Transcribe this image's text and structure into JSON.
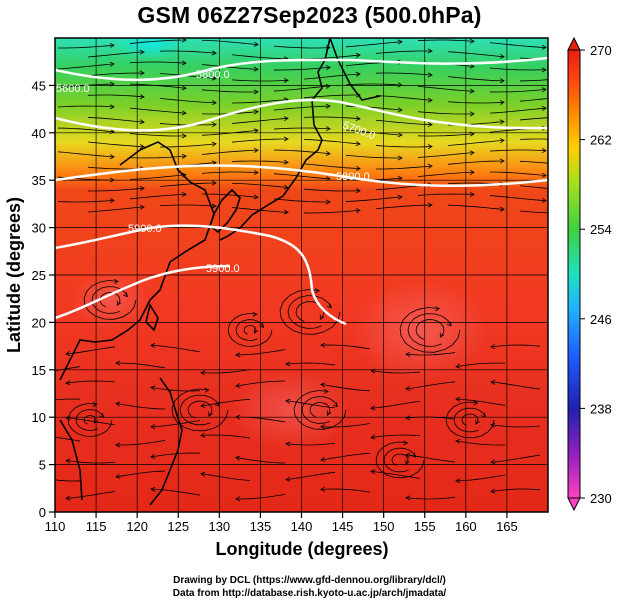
{
  "title": "GSM 06Z27Sep2023 (500.0hPa)",
  "credits": {
    "line1": "Drawing by DCL (https://www.gfd-dennou.org/library/dcl/)",
    "line2": "Data from http://database.rish.kyoto-u.ac.jp/arch/jmadata/"
  },
  "chart_data": {
    "type": "heatmap",
    "title": "GSM 06Z27Sep2023 (500.0hPa)",
    "xlabel": "Longitude (degrees)",
    "ylabel": "Latitude  (degrees)",
    "xlim": [
      110,
      170
    ],
    "ylim": [
      0,
      50
    ],
    "x_ticks": [
      "110",
      "115",
      "120",
      "125",
      "130",
      "135",
      "140",
      "145",
      "150",
      "155",
      "160",
      "165"
    ],
    "y_ticks": [
      "0",
      "5",
      "10",
      "15",
      "20",
      "25",
      "30",
      "35",
      "40",
      "45"
    ],
    "grid": true,
    "colorbar": {
      "range": [
        230,
        270
      ],
      "ticks": [
        "230",
        "238",
        "246",
        "254",
        "262",
        "270"
      ],
      "colors": [
        "#ff40c0",
        "#3030c0",
        "#2aa0ff",
        "#30e0b0",
        "#40d040",
        "#a0e020",
        "#ffd000",
        "#ff8a00",
        "#ff4010",
        "#e02010"
      ]
    },
    "contours": [
      {
        "label": "5800.0"
      },
      {
        "label": "5700.0"
      },
      {
        "label": "5800.0"
      },
      {
        "label": "5900.0"
      },
      {
        "label": "5900.0"
      },
      {
        "label": "5600.0"
      }
    ],
    "overlay": "streamlines of 500 hPa wind with arrows; coastline of East Asia and West Pacific"
  }
}
